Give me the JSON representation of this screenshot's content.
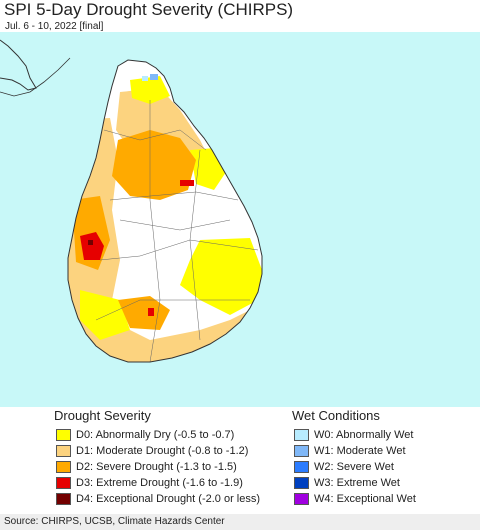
{
  "title": "SPI 5-Day Drought Severity (CHIRPS)",
  "subtitle": "Jul. 6 - 10, 2022 [final]",
  "colors": {
    "ocean": "#c8f8f8",
    "land_none": "#ffffff",
    "d0": "#ffff00",
    "d1": "#fcd37f",
    "d2": "#ffaa00",
    "d3": "#e60000",
    "d4": "#730000",
    "w0": "#b8ecff",
    "w1": "#80b8f8",
    "w2": "#2c7cff",
    "w3": "#0040c0",
    "w4": "#a000e0"
  },
  "legend": {
    "drought_heading": "Drought Severity",
    "wet_heading": "Wet Conditions",
    "drought_items": [
      {
        "code": "d0",
        "label": "D0: Abnormally Dry (-0.5 to -0.7)"
      },
      {
        "code": "d1",
        "label": "D1: Moderate Drought (-0.8 to -1.2)"
      },
      {
        "code": "d2",
        "label": "D2: Severe Drought (-1.3 to -1.5)"
      },
      {
        "code": "d3",
        "label": "D3: Extreme Drought (-1.6 to -1.9)"
      },
      {
        "code": "d4",
        "label": "D4: Exceptional Drought (-2.0 or less)"
      }
    ],
    "wet_items": [
      {
        "code": "w0",
        "label": "W0: Abnormally Wet"
      },
      {
        "code": "w1",
        "label": "W1: Moderate Wet"
      },
      {
        "code": "w2",
        "label": "W2: Severe Wet"
      },
      {
        "code": "w3",
        "label": "W3: Extreme Wet"
      },
      {
        "code": "w4",
        "label": "W4: Exceptional Wet"
      }
    ]
  },
  "footer": "Source: CHIRPS, UCSB, Climate Hazards Center"
}
